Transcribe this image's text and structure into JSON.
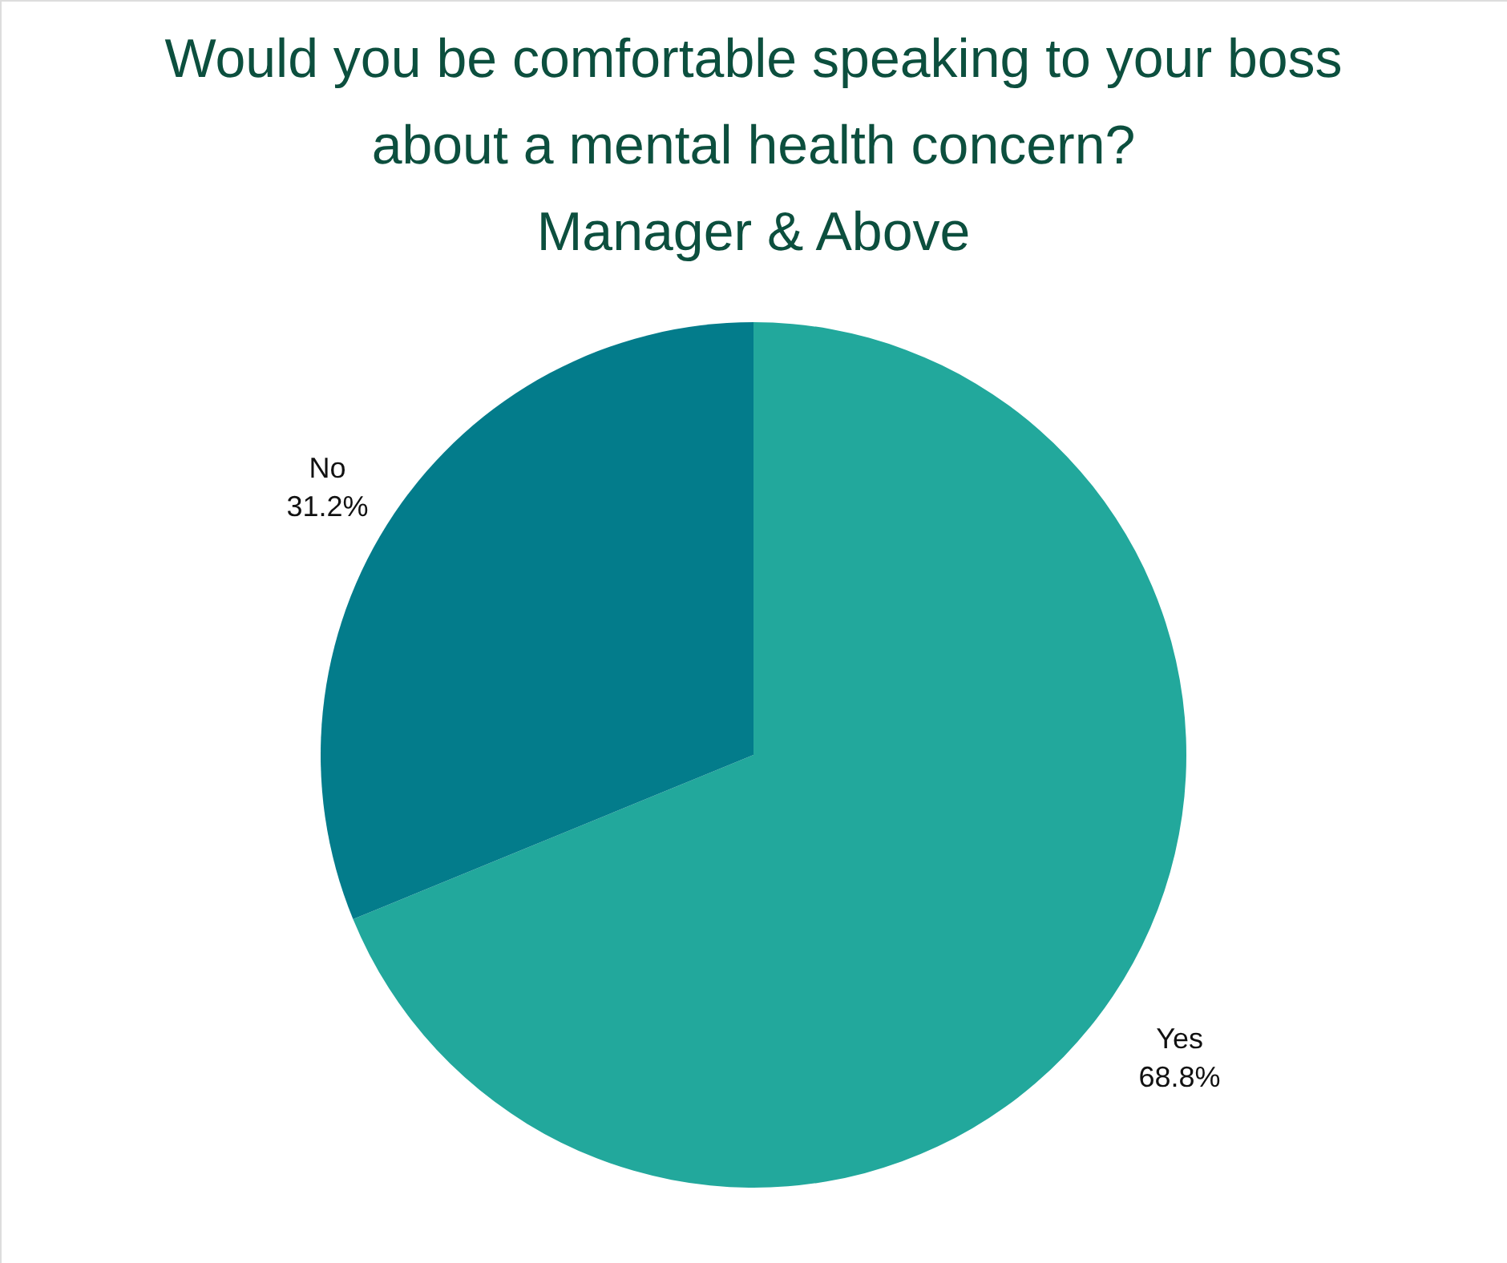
{
  "chart_data": {
    "type": "pie",
    "title": "Would you be comfortable speaking to your boss about a mental health concern?",
    "subtitle": "Manager & Above",
    "categories": [
      "Yes",
      "No"
    ],
    "values": [
      68.8,
      31.2
    ],
    "colors": [
      "#22a89c",
      "#037c8b"
    ],
    "value_labels": [
      "68.8%",
      "31.2%"
    ]
  }
}
